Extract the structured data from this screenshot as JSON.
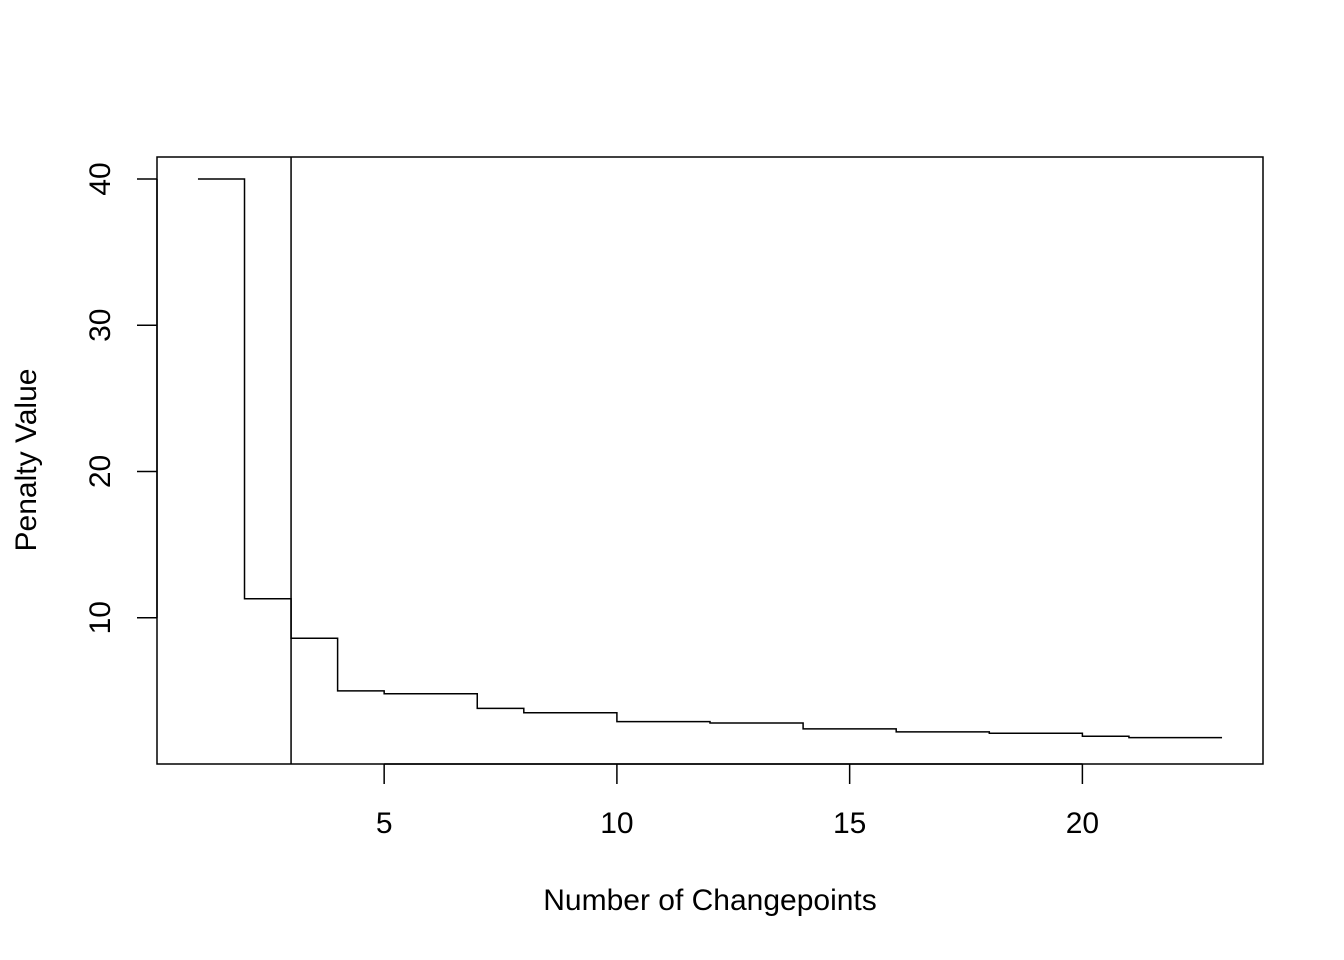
{
  "chart_data": {
    "type": "line",
    "title": "",
    "xlabel": "Number of Changepoints",
    "ylabel": "Penalty Value",
    "x": [
      1,
      2,
      3,
      4,
      5,
      6,
      7,
      8,
      9,
      10,
      11,
      12,
      13,
      14,
      15,
      16,
      17,
      18,
      19,
      20,
      21,
      22,
      23
    ],
    "values": [
      40,
      11.3,
      8.6,
      5,
      4.8,
      4.8,
      3.8,
      3.5,
      3.5,
      2.9,
      2.9,
      2.8,
      2.8,
      2.4,
      2.4,
      2.2,
      2.2,
      2.1,
      2.1,
      1.9,
      1.8,
      1.8,
      1.8
    ],
    "step": "post",
    "reference_line_x": 3,
    "xlim": [
      0.12,
      23.88
    ],
    "ylim": [
      0,
      41.5
    ],
    "x_ticks": [
      5,
      10,
      15,
      20
    ],
    "y_ticks": [
      10,
      20,
      30,
      40
    ],
    "grid": false,
    "legend": "none",
    "colors": {
      "line": "#000000",
      "background": "#ffffff"
    }
  }
}
